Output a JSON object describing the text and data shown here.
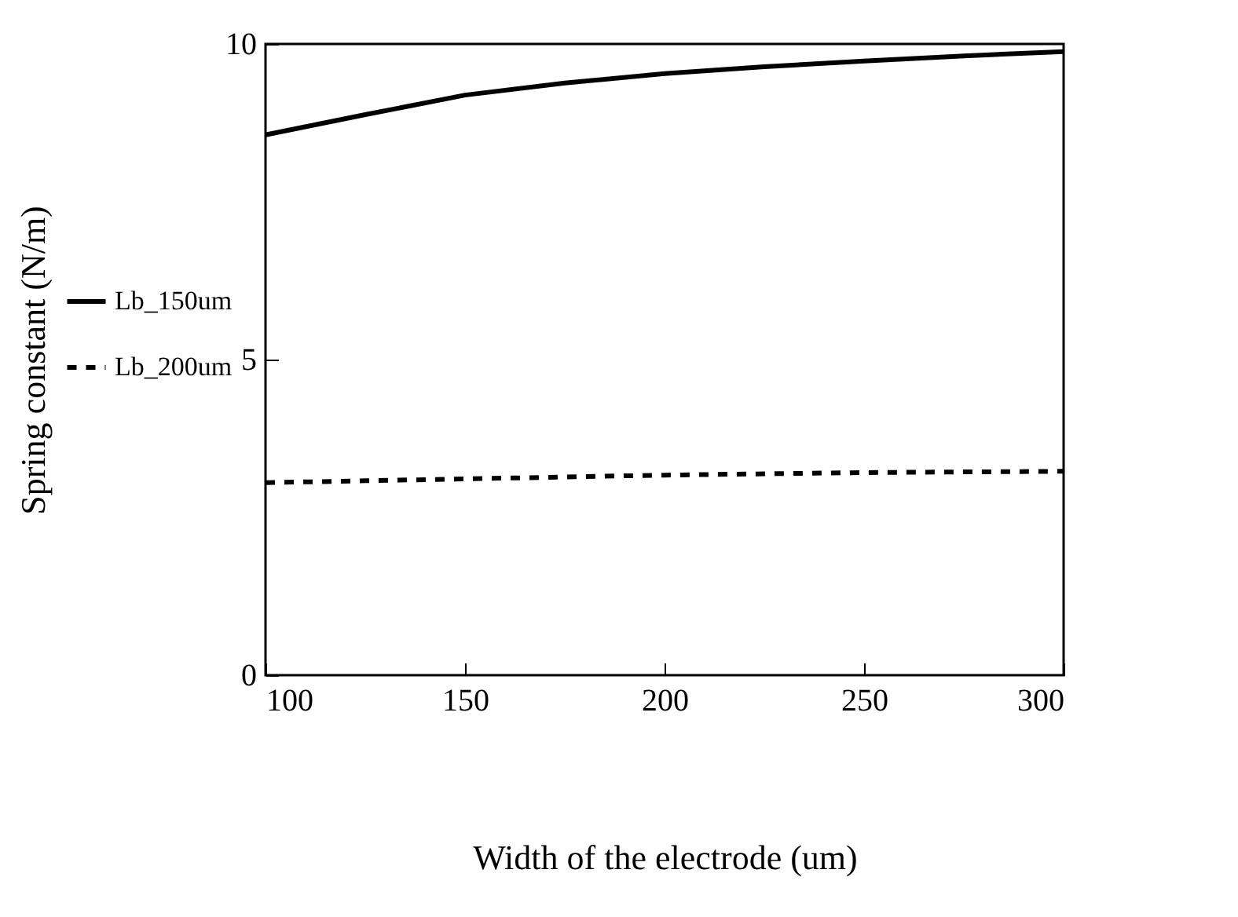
{
  "chart_data": {
    "type": "line",
    "xlabel": "Width of the electrode (um)",
    "ylabel": "Spring constant (N/m)",
    "x": [
      100,
      125,
      150,
      175,
      200,
      225,
      250,
      275,
      300
    ],
    "series": [
      {
        "name": "Lb_150um",
        "color": "#000000",
        "line_style": "solid",
        "values": [
          8.56,
          8.88,
          9.19,
          9.38,
          9.53,
          9.64,
          9.73,
          9.81,
          9.88
        ]
      },
      {
        "name": "Lb_200um",
        "color": "#000000",
        "line_style": "dashed",
        "values": [
          3.05,
          3.08,
          3.11,
          3.14,
          3.17,
          3.19,
          3.21,
          3.22,
          3.23
        ]
      }
    ],
    "xlim": [
      100,
      300
    ],
    "xticks": [
      100,
      150,
      200,
      250,
      300
    ],
    "ylim": [
      0,
      10
    ],
    "yticks": [
      0,
      5,
      10
    ],
    "grid": false,
    "legend": "left",
    "marker": "none"
  }
}
